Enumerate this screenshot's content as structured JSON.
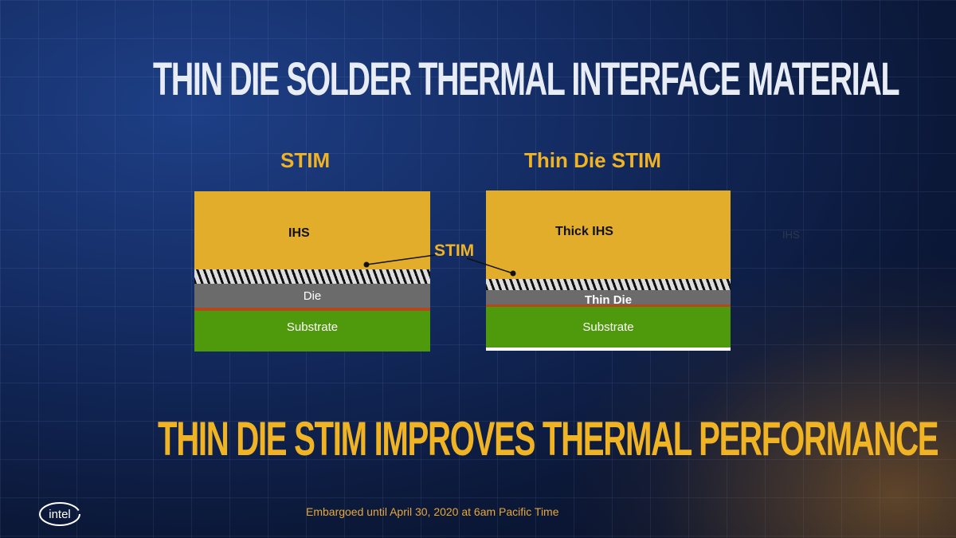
{
  "title": "THIN DIE SOLDER THERMAL INTERFACE MATERIAL",
  "tagline": "THIN DIE STIM IMPROVES THERMAL PERFORMANCE",
  "left": {
    "heading": "STIM",
    "ihs": "IHS",
    "die": "Die",
    "substrate": "Substrate"
  },
  "right": {
    "heading": "Thin Die STIM",
    "ihs": "Thick IHS",
    "die": "Thin Die",
    "substrate": "Substrate"
  },
  "callout": "STIM",
  "ghost_label": "IHS",
  "footer": "Embargoed until April 30, 2020 at 6am Pacific Time",
  "logo": "intel",
  "colors": {
    "ihs": "#e2ad2a",
    "die": "#6b6b6b",
    "substrate": "#4f9a0c",
    "accent": "#f0b323"
  }
}
